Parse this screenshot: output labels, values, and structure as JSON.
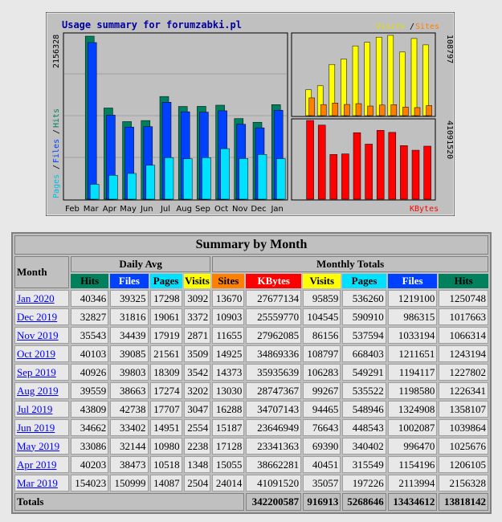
{
  "graph": {
    "title": "Usage summary for forumzabki.pl",
    "left_ylabel_hits": "Hits",
    "left_ylabel_files": "Files",
    "left_ylabel_pages": "Pages",
    "left_ymax": "2156328",
    "right_legend_visits": "Visits",
    "right_legend_sites": "Sites",
    "right_ymax_top": "108797",
    "right_ymax_bottom": "41091520",
    "right_label_kbytes": "KBytes",
    "months": [
      "Feb",
      "Mar",
      "Apr",
      "May",
      "Jun",
      "Jul",
      "Aug",
      "Sep",
      "Oct",
      "Nov",
      "Dec",
      "Jan"
    ]
  },
  "chart_data": {
    "type": "bar",
    "categories": [
      "Feb",
      "Mar",
      "Apr",
      "May",
      "Jun",
      "Jul",
      "Aug",
      "Sep",
      "Oct",
      "Nov",
      "Dec",
      "Jan"
    ],
    "series": [
      {
        "name": "Hits",
        "values": [
          0,
          2156328,
          1206105,
          1025676,
          1039864,
          1358107,
          1226341,
          1227802,
          1243194,
          1066314,
          1017663,
          1250748
        ]
      },
      {
        "name": "Files",
        "values": [
          0,
          2113994,
          1154196,
          996470,
          1002087,
          1324908,
          1198580,
          1194117,
          1211651,
          1033194,
          986315,
          1219100
        ]
      },
      {
        "name": "Pages",
        "values": [
          0,
          197226,
          315549,
          340402,
          448543,
          548946,
          535522,
          549291,
          668403,
          537594,
          590910,
          536260
        ]
      },
      {
        "name": "Visits",
        "values": [
          0,
          35057,
          40451,
          69390,
          76643,
          94465,
          99267,
          106283,
          108797,
          86156,
          104545,
          95859
        ]
      },
      {
        "name": "Sites",
        "values": [
          0,
          24014,
          15055,
          17128,
          15187,
          16288,
          13030,
          14373,
          14925,
          11655,
          10903,
          13670
        ]
      },
      {
        "name": "KBytes",
        "values": [
          0,
          41091520,
          38662281,
          23341363,
          23646949,
          34707143,
          28747367,
          35935639,
          34869336,
          27962085,
          25559770,
          27677134
        ]
      }
    ],
    "colors": {
      "Hits": "#00805c",
      "Files": "#0040ff",
      "Pages": "#00e0ff",
      "Visits": "#ffff00",
      "Sites": "#ff8000",
      "KBytes": "#ff0000"
    }
  },
  "summary": {
    "title": "Summary by Month",
    "month_label": "Month",
    "daily_avg_label": "Daily Avg",
    "monthly_totals_label": "Monthly Totals",
    "daily_cols": [
      "Hits",
      "Files",
      "Pages",
      "Visits"
    ],
    "monthly_cols": [
      "Sites",
      "KBytes",
      "Visits",
      "Pages",
      "Files",
      "Hits"
    ],
    "rows": [
      {
        "month": "Jan 2020",
        "d_hits": "40346",
        "d_files": "39325",
        "d_pages": "17298",
        "d_visits": "3092",
        "sites": "13670",
        "kbytes": "27677134",
        "visits": "95859",
        "pages": "536260",
        "files": "1219100",
        "hits": "1250748"
      },
      {
        "month": "Dec 2019",
        "d_hits": "32827",
        "d_files": "31816",
        "d_pages": "19061",
        "d_visits": "3372",
        "sites": "10903",
        "kbytes": "25559770",
        "visits": "104545",
        "pages": "590910",
        "files": "986315",
        "hits": "1017663"
      },
      {
        "month": "Nov 2019",
        "d_hits": "35543",
        "d_files": "34439",
        "d_pages": "17919",
        "d_visits": "2871",
        "sites": "11655",
        "kbytes": "27962085",
        "visits": "86156",
        "pages": "537594",
        "files": "1033194",
        "hits": "1066314"
      },
      {
        "month": "Oct 2019",
        "d_hits": "40103",
        "d_files": "39085",
        "d_pages": "21561",
        "d_visits": "3509",
        "sites": "14925",
        "kbytes": "34869336",
        "visits": "108797",
        "pages": "668403",
        "files": "1211651",
        "hits": "1243194"
      },
      {
        "month": "Sep 2019",
        "d_hits": "40926",
        "d_files": "39803",
        "d_pages": "18309",
        "d_visits": "3542",
        "sites": "14373",
        "kbytes": "35935639",
        "visits": "106283",
        "pages": "549291",
        "files": "1194117",
        "hits": "1227802"
      },
      {
        "month": "Aug 2019",
        "d_hits": "39559",
        "d_files": "38663",
        "d_pages": "17274",
        "d_visits": "3202",
        "sites": "13030",
        "kbytes": "28747367",
        "visits": "99267",
        "pages": "535522",
        "files": "1198580",
        "hits": "1226341"
      },
      {
        "month": "Jul 2019",
        "d_hits": "43809",
        "d_files": "42738",
        "d_pages": "17707",
        "d_visits": "3047",
        "sites": "16288",
        "kbytes": "34707143",
        "visits": "94465",
        "pages": "548946",
        "files": "1324908",
        "hits": "1358107"
      },
      {
        "month": "Jun 2019",
        "d_hits": "34662",
        "d_files": "33402",
        "d_pages": "14951",
        "d_visits": "2554",
        "sites": "15187",
        "kbytes": "23646949",
        "visits": "76643",
        "pages": "448543",
        "files": "1002087",
        "hits": "1039864"
      },
      {
        "month": "May 2019",
        "d_hits": "33086",
        "d_files": "32144",
        "d_pages": "10980",
        "d_visits": "2238",
        "sites": "17128",
        "kbytes": "23341363",
        "visits": "69390",
        "pages": "340402",
        "files": "996470",
        "hits": "1025676"
      },
      {
        "month": "Apr 2019",
        "d_hits": "40203",
        "d_files": "38473",
        "d_pages": "10518",
        "d_visits": "1348",
        "sites": "15055",
        "kbytes": "38662281",
        "visits": "40451",
        "pages": "315549",
        "files": "1154196",
        "hits": "1206105"
      },
      {
        "month": "Mar 2019",
        "d_hits": "154023",
        "d_files": "150999",
        "d_pages": "14087",
        "d_visits": "2504",
        "sites": "24014",
        "kbytes": "41091520",
        "visits": "35057",
        "pages": "197226",
        "files": "2113994",
        "hits": "2156328"
      }
    ],
    "totals": {
      "label": "Totals",
      "kbytes": "342200587",
      "visits": "916913",
      "pages": "5268646",
      "files": "13434612",
      "hits": "13818142"
    }
  }
}
